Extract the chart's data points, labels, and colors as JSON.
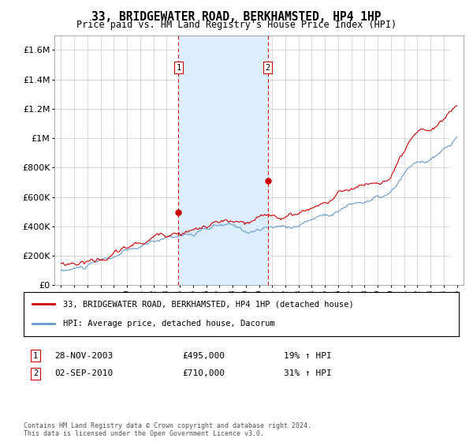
{
  "title": "33, BRIDGEWATER ROAD, BERKHAMSTED, HP4 1HP",
  "subtitle": "Price paid vs. HM Land Registry's House Price Index (HPI)",
  "title_fontsize": 11,
  "subtitle_fontsize": 9,
  "legend_line1": "33, BRIDGEWATER ROAD, BERKHAMSTED, HP4 1HP (detached house)",
  "legend_line2": "HPI: Average price, detached house, Dacorum",
  "footer": "Contains HM Land Registry data © Crown copyright and database right 2024.\nThis data is licensed under the Open Government Licence v3.0.",
  "transaction1_date": "28-NOV-2003",
  "transaction1_price": 495000,
  "transaction1_label": "19% ↑ HPI",
  "transaction2_date": "02-SEP-2010",
  "transaction2_price": 710000,
  "transaction2_label": "31% ↑ HPI",
  "marker1_x": 2003.9,
  "marker2_x": 2010.67,
  "red_color": "#cc0000",
  "blue_color": "#6699cc",
  "shaded_color": "#ddeeff",
  "grid_color": "#cccccc",
  "background_color": "#ffffff",
  "hatch_start": 2024.5,
  "ylim": [
    0,
    1700000
  ],
  "xlim": [
    1994.5,
    2025.5
  ]
}
